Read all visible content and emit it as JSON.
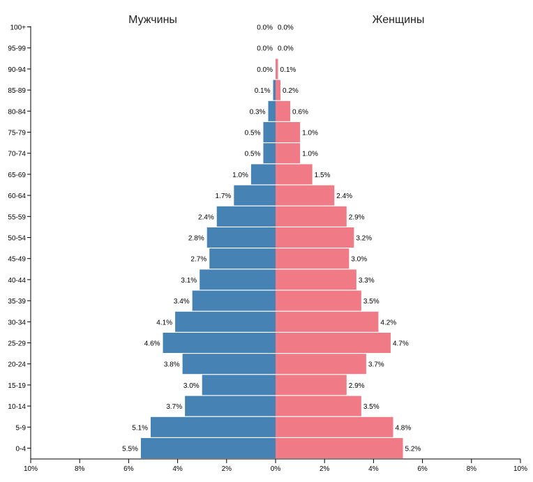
{
  "chart_data": {
    "type": "bar",
    "orientation": "horizontal",
    "left_title": "Мужчины",
    "right_title": "Женщины",
    "categories": [
      "0-4",
      "5-9",
      "10-14",
      "15-19",
      "20-24",
      "25-29",
      "30-34",
      "35-39",
      "40-44",
      "45-49",
      "50-54",
      "55-59",
      "60-64",
      "65-69",
      "70-74",
      "75-79",
      "80-84",
      "85-89",
      "90-94",
      "95-99",
      "100+"
    ],
    "series": [
      {
        "name": "Мужчины",
        "color": "#4682b4",
        "values": [
          5.5,
          5.1,
          3.7,
          3.0,
          3.8,
          4.6,
          4.1,
          3.4,
          3.1,
          2.7,
          2.8,
          2.4,
          1.7,
          1.0,
          0.5,
          0.5,
          0.3,
          0.1,
          0.0,
          0.0,
          0.0
        ],
        "labels": [
          "5.5%",
          "5.1%",
          "3.7%",
          "3.0%",
          "3.8%",
          "4.6%",
          "4.1%",
          "3.4%",
          "3.1%",
          "2.7%",
          "2.8%",
          "2.4%",
          "1.7%",
          "1.0%",
          "0.5%",
          "0.5%",
          "0.3%",
          "0.1%",
          "0.0%",
          "0.0%",
          "0.0%"
        ]
      },
      {
        "name": "Женщины",
        "color": "#f07b87",
        "values": [
          5.2,
          4.8,
          3.5,
          2.9,
          3.7,
          4.7,
          4.2,
          3.5,
          3.3,
          3.0,
          3.2,
          2.9,
          2.4,
          1.5,
          1.0,
          1.0,
          0.6,
          0.2,
          0.1,
          0.0,
          0.0
        ],
        "labels": [
          "5.2%",
          "4.8%",
          "3.5%",
          "2.9%",
          "3.7%",
          "4.7%",
          "4.2%",
          "3.5%",
          "3.3%",
          "3.0%",
          "3.2%",
          "2.9%",
          "2.4%",
          "1.5%",
          "1.0%",
          "1.0%",
          "0.6%",
          "0.2%",
          "0.1%",
          "0.0%",
          "0.0%"
        ]
      }
    ],
    "x_ticks": [
      "10%",
      "8%",
      "6%",
      "4%",
      "2%",
      "0%",
      "2%",
      "4%",
      "6%",
      "8%",
      "10%"
    ],
    "xlim": [
      -10,
      10
    ]
  }
}
